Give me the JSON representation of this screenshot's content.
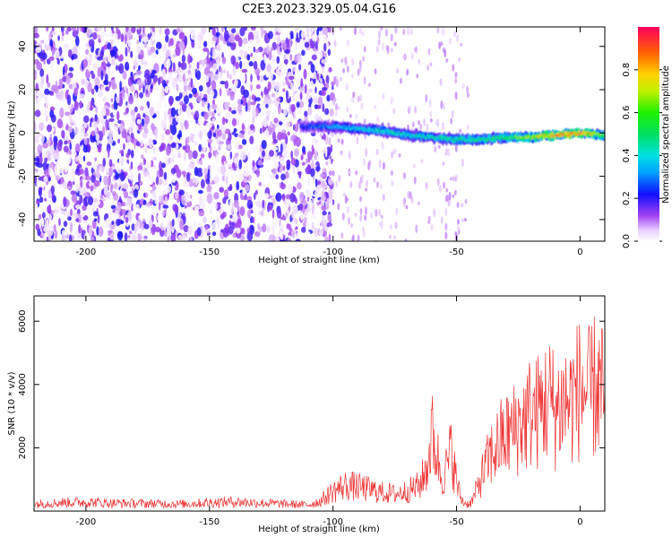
{
  "title": "C2E3.2023.329.05.04.G16",
  "colors": {
    "snr_line": "#ee3333",
    "axes": "#000000",
    "background": "#ffffff"
  },
  "chart_data": [
    {
      "type": "heatmap",
      "xlabel": "Height of straight line (km)",
      "ylabel": "Frequency (Hz)",
      "xlim": [
        -221,
        10
      ],
      "ylim": [
        -50,
        49
      ],
      "x_ticks": [
        -200,
        -150,
        -100,
        -50,
        0
      ],
      "x_tick_labels": [
        "-200",
        "-150",
        "-100",
        "-50",
        "0"
      ],
      "y_ticks": [
        -40,
        -20,
        0,
        20,
        40
      ],
      "y_tick_labels": [
        "-40",
        "-20",
        "0",
        "20",
        "40"
      ],
      "colorbar": {
        "label": "Normalized spectral amplitude",
        "range": [
          0,
          1
        ],
        "ticks": [
          0.0,
          0.2,
          0.4,
          0.6,
          0.8
        ],
        "tick_labels": [
          "0.0",
          "0.2",
          "0.4",
          "0.6",
          "0.8"
        ],
        "colormap": "rainbow"
      },
      "noise_region_x": [
        -221,
        -100
      ],
      "signal_track": {
        "x": [
          -113,
          -100,
          -90,
          -80,
          -70,
          -60,
          -50,
          -40,
          -30,
          -20,
          -10,
          0,
          10
        ],
        "frequency": [
          3,
          3,
          2,
          1,
          -1,
          -2,
          -3,
          -3,
          -2,
          -2,
          -1,
          0,
          -1
        ],
        "amplitude": [
          0.25,
          0.35,
          0.4,
          0.45,
          0.45,
          0.45,
          0.5,
          0.5,
          0.55,
          0.7,
          0.85,
          0.9,
          0.6
        ]
      }
    },
    {
      "type": "line",
      "xlabel": "Height of straight line (km)",
      "ylabel": "SNR (10 * v/v)",
      "xlim": [
        -221,
        10
      ],
      "ylim": [
        0,
        6800
      ],
      "x_ticks": [
        -200,
        -150,
        -100,
        -50,
        0
      ],
      "x_tick_labels": [
        "-200",
        "-150",
        "-100",
        "-50",
        "0"
      ],
      "y_ticks": [
        2000,
        4000,
        6000
      ],
      "y_tick_labels": [
        "2000",
        "4000",
        "6000"
      ],
      "series": [
        {
          "x": [
            -221,
            -210,
            -200,
            -190,
            -180,
            -170,
            -160,
            -150,
            -140,
            -130,
            -120,
            -110,
            -105,
            -100,
            -95,
            -90,
            -85,
            -80,
            -75,
            -70,
            -65,
            -62,
            -60,
            -58,
            -56,
            -54,
            -52,
            -50,
            -48,
            -46,
            -44,
            -42,
            -40,
            -38,
            -36,
            -34,
            -32,
            -30,
            -28,
            -26,
            -24,
            -22,
            -20,
            -18,
            -16,
            -14,
            -12,
            -10,
            -8,
            -6,
            -4,
            -2,
            0,
            2,
            4,
            6,
            8,
            10
          ],
          "values": [
            250,
            300,
            320,
            280,
            270,
            260,
            250,
            300,
            330,
            290,
            250,
            220,
            350,
            700,
            900,
            850,
            750,
            650,
            600,
            700,
            900,
            1500,
            2700,
            2000,
            1200,
            1500,
            2200,
            1000,
            400,
            250,
            300,
            700,
            1200,
            1600,
            2000,
            2200,
            2500,
            2600,
            2800,
            2900,
            3100,
            3200,
            3500,
            3400,
            3600,
            3800,
            3900,
            3500,
            3700,
            3900,
            3800,
            4100,
            4300,
            4200,
            4000,
            4400,
            4300,
            3900
          ]
        }
      ]
    }
  ]
}
